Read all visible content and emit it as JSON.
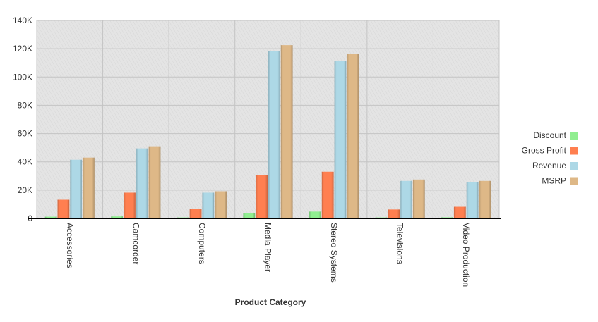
{
  "chart_data": {
    "type": "bar",
    "title": "",
    "xlabel": "Product Category",
    "ylabel": "",
    "categories": [
      "Accessories",
      "Camcorder",
      "Computers",
      "Media Player",
      "Stereo Systems",
      "Televisions",
      "Video Production"
    ],
    "series": [
      {
        "name": "Discount",
        "color": "#90EE90",
        "values": [
          1200,
          1400,
          700,
          3800,
          4800,
          700,
          800
        ]
      },
      {
        "name": "Gross Profit",
        "color": "#FF7F50",
        "values": [
          13200,
          18200,
          6800,
          30500,
          33000,
          6300,
          8200
        ]
      },
      {
        "name": "Revenue",
        "color": "#ADD8E6",
        "values": [
          41500,
          49500,
          18200,
          118500,
          111500,
          26500,
          25500
        ]
      },
      {
        "name": "MSRP",
        "color": "#DEB887",
        "values": [
          43000,
          51000,
          19200,
          122500,
          116500,
          27500,
          26500
        ]
      }
    ],
    "ylim": [
      0,
      140000
    ],
    "y_ticks": [
      0,
      20000,
      40000,
      60000,
      80000,
      100000,
      120000,
      140000
    ],
    "y_tick_labels": [
      "0",
      "20K",
      "40K",
      "60K",
      "80K",
      "100K",
      "120K",
      "140K"
    ],
    "grid": true,
    "legend_position": "right",
    "category_label_orientation": "vertical"
  }
}
